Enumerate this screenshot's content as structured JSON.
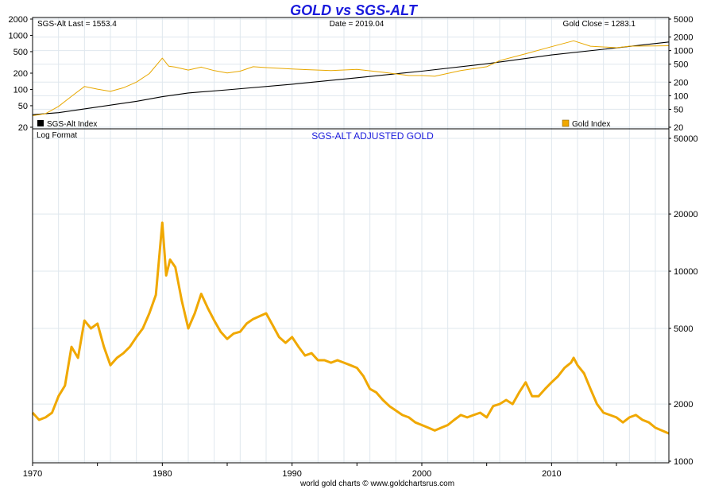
{
  "title": "GOLD vs SGS-ALT",
  "title_color": "#1a1adc",
  "footer": "world gold charts © www.goldchartsrus.com",
  "chart_data": [
    {
      "type": "line",
      "panel": "top",
      "scale": "log",
      "info_left": "SGS-Alt Last = 1553.4",
      "info_center": "Date = 2019.04",
      "info_right": "Gold Close = 1283.1",
      "left_ticks": [
        "2000",
        "1000",
        "500",
        "200",
        "100",
        "50",
        "20"
      ],
      "right_ticks": [
        "5000",
        "2000",
        "1000",
        "500",
        "200",
        "100",
        "50",
        "20"
      ],
      "left_axis": {
        "min": 20,
        "max": 2000,
        "ticks": [
          20,
          50,
          100,
          200,
          500,
          1000,
          2000
        ],
        "labels": [
          "20",
          "50",
          "100",
          "200",
          "500",
          "1000",
          "2000"
        ]
      },
      "right_axis": {
        "min": 20,
        "max": 5000,
        "ticks": [
          20,
          50,
          100,
          200,
          500,
          1000,
          2000,
          5000
        ],
        "labels": [
          "20",
          "50",
          "100",
          "200",
          "500",
          "1000",
          "2000",
          "5000"
        ]
      },
      "series": [
        {
          "name": "SGS-Alt Index",
          "axis": "right",
          "color": "#000000",
          "x": [
            1970,
            1972,
            1975,
            1978,
            1980,
            1982,
            1985,
            1990,
            1995,
            2000,
            2005,
            2010,
            2015,
            2019.04
          ],
          "values": [
            38,
            42,
            56,
            75,
            95,
            115,
            135,
            180,
            250,
            350,
            510,
            800,
            1150,
            1553.4
          ]
        },
        {
          "name": "Gold Index",
          "axis": "right",
          "color": "#e8a800",
          "x": [
            1970,
            1971,
            1972,
            1973,
            1974,
            1975,
            1976,
            1977,
            1978,
            1979,
            1980,
            1980.5,
            1981,
            1982,
            1983,
            1984,
            1985,
            1986,
            1987,
            1988,
            1990,
            1993,
            1995,
            1997,
            1999,
            2000,
            2001,
            2003,
            2005,
            2006,
            2008,
            2010,
            2011.7,
            2013,
            2015,
            2016,
            2017,
            2018,
            2019.04
          ],
          "values": [
            36,
            40,
            58,
            97,
            160,
            140,
            125,
            150,
            200,
            310,
            680,
            450,
            430,
            370,
            430,
            360,
            320,
            350,
            440,
            420,
            390,
            360,
            385,
            330,
            280,
            280,
            270,
            360,
            440,
            600,
            850,
            1220,
            1650,
            1250,
            1160,
            1250,
            1260,
            1270,
            1283.1
          ]
        }
      ]
    },
    {
      "type": "line",
      "panel": "bottom",
      "scale": "log",
      "title": "SGS-ALT ADJUSTED  GOLD",
      "title_color": "#1a1adc",
      "note": "Log Format",
      "xlim": [
        1970,
        2019.04
      ],
      "x_ticks": [
        1970,
        1980,
        1990,
        2000,
        2010
      ],
      "x_tick_labels": [
        "1970",
        "1980",
        "1990",
        "2000",
        "2010"
      ],
      "y_axis": {
        "min": 1000,
        "max": 50000,
        "ticks": [
          1000,
          2000,
          5000,
          10000,
          20000,
          50000
        ],
        "labels": [
          "1000",
          "2000",
          "5000",
          "10000",
          "20000",
          "50000"
        ]
      },
      "series": [
        {
          "name": "SGS-ALT Adjusted Gold",
          "color": "#f0a800",
          "x": [
            1970,
            1970.5,
            1971,
            1971.5,
            1972,
            1972.5,
            1973,
            1973.5,
            1974,
            1974.5,
            1975,
            1975.5,
            1976,
            1976.5,
            1977,
            1977.5,
            1978,
            1978.5,
            1979,
            1979.5,
            1980,
            1980.3,
            1980.6,
            1981,
            1981.5,
            1982,
            1982.5,
            1983,
            1983.5,
            1984,
            1984.5,
            1985,
            1985.5,
            1986,
            1986.5,
            1987,
            1987.5,
            1988,
            1988.5,
            1989,
            1989.5,
            1990,
            1990.5,
            1991,
            1991.5,
            1992,
            1992.5,
            1993,
            1993.5,
            1994,
            1994.5,
            1995,
            1995.5,
            1996,
            1996.5,
            1997,
            1997.5,
            1998,
            1998.5,
            1999,
            1999.5,
            2000,
            2000.5,
            2001,
            2001.5,
            2002,
            2002.5,
            2003,
            2003.5,
            2004,
            2004.5,
            2005,
            2005.5,
            2006,
            2006.5,
            2007,
            2007.5,
            2008,
            2008.5,
            2009,
            2009.5,
            2010,
            2010.5,
            2011,
            2011.5,
            2011.7,
            2012,
            2012.5,
            2013,
            2013.5,
            2014,
            2014.5,
            2015,
            2015.5,
            2016,
            2016.5,
            2017,
            2017.5,
            2018,
            2018.5,
            2019.04
          ],
          "values": [
            1800,
            1650,
            1700,
            1800,
            2200,
            2500,
            4000,
            3500,
            5500,
            5000,
            5300,
            4000,
            3200,
            3500,
            3700,
            4000,
            4500,
            5000,
            6000,
            7500,
            18000,
            9500,
            11500,
            10500,
            7000,
            5000,
            6000,
            7600,
            6400,
            5500,
            4800,
            4400,
            4700,
            4800,
            5300,
            5600,
            5800,
            6000,
            5200,
            4500,
            4200,
            4500,
            4000,
            3600,
            3700,
            3400,
            3400,
            3300,
            3400,
            3300,
            3200,
            3100,
            2800,
            2400,
            2300,
            2100,
            1950,
            1850,
            1750,
            1700,
            1600,
            1550,
            1500,
            1450,
            1500,
            1550,
            1650,
            1750,
            1700,
            1750,
            1800,
            1700,
            1950,
            2000,
            2100,
            2000,
            2300,
            2600,
            2200,
            2200,
            2400,
            2600,
            2800,
            3100,
            3300,
            3500,
            3200,
            2900,
            2400,
            2000,
            1800,
            1750,
            1700,
            1600,
            1700,
            1750,
            1650,
            1600,
            1500,
            1450,
            1400
          ]
        }
      ]
    }
  ]
}
